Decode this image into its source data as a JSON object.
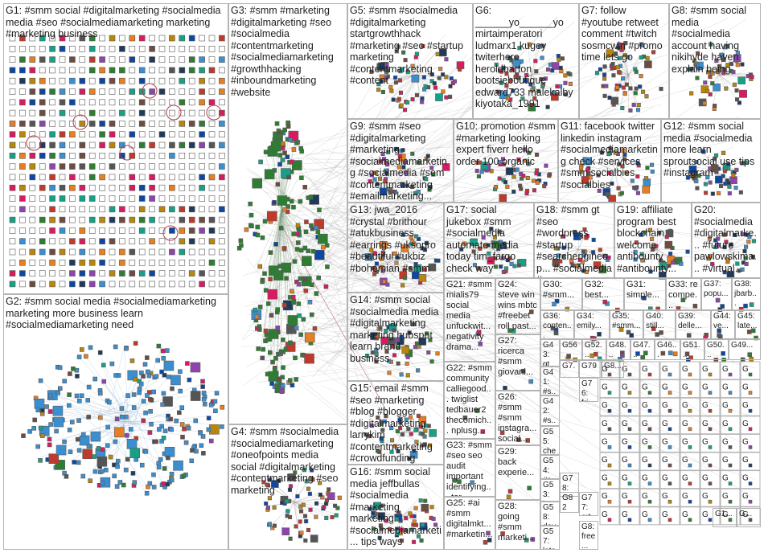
{
  "groups": [
    {
      "id": "G1",
      "label": "G1: #smm social #digitalmarketing #socialmedia media #seo #socialmediamarketing marketing #marketing business"
    },
    {
      "id": "G2",
      "label": "G2: #smm social media #socialmediamarketing marketing more business learn #socialmediamarketing need"
    },
    {
      "id": "G3",
      "label": "G3: #smm #marketing #digitalmarketing #seo #socialmedia #contentmarketing #socialmediamarketing #growthhacking #inboundmarketing #website"
    },
    {
      "id": "G4",
      "label": "G4: #smm #socialmedia #socialmediamarketing #oneofpoints media social #digitalmarketing #contentmarketing #seo marketing"
    },
    {
      "id": "G5",
      "label": "G5: #smm #socialmedia #digitalmarketing startgrowthhack #marketing #seo #startup marketing #contentmarketing #content"
    },
    {
      "id": "G6",
      "label": "G6: ______yo______yo mirtaimperatori ludmarx1 kugey twiterhero heroldbarton bootsieboutique edward733 malekalby kiyotaka_1991"
    },
    {
      "id": "G7",
      "label": "G7: follow #youtube retweet comment #twitch sosmcwin #promo time lets go"
    },
    {
      "id": "G8",
      "label": "G8: #smm social media #socialmedia account having nikihyde haven explain being"
    },
    {
      "id": "G9",
      "label": "G9: #smm #seo #digitalmarketing #marketing #socialmediamarketing #socialmedia #sem #contentmarketing #emailmarketing..."
    },
    {
      "id": "G10",
      "label": "G10: promotion #smm #marketing looking expert fiverr hello order 100 organic"
    },
    {
      "id": "G11",
      "label": "G11: facebook twitter linkedin instagram #socialmediamarketing check #services #smm socialbies #socialbies"
    },
    {
      "id": "G12",
      "label": "G12: #smm social media #socialmedia more learn sproutsocial use tips #instagram"
    },
    {
      "id": "G13",
      "label": "G13: jwa_2016 #crystal #brithour #atukbusiness #earrings #uksopro #beautiful #ukbiz #bohemian #smm"
    },
    {
      "id": "G14",
      "label": "G14: #smm social #socialmedia media #digitalmarketing marketing hubspot learn brand business"
    },
    {
      "id": "G15",
      "label": "G15: email #smm #seo #marketing #blog #blogger #digitalmarketing larrykim #contentmarketing #crowdfunding"
    },
    {
      "id": "G16",
      "label": "G16: #smm social media jeffbullas #socialmedia #marketing marketing #socialmediamarketi... tips ways"
    },
    {
      "id": "G17",
      "label": "G17: social jukebox #smm #socialmedia automate media today tim_fargo check way"
    },
    {
      "id": "G18",
      "label": "G18: #smm gt #seo #wordpress #startup #searchengineop... #socialmedia #seonews #sem..."
    },
    {
      "id": "G19",
      "label": "G19: affiliate program best blockchain welcome antibounty #antibounty..."
    },
    {
      "id": "G20",
      "label": "G20: #socialmedia #digitalmarke... #future pawlowskima... #virtual..."
    },
    {
      "id": "G21",
      "label": "G21: #smm mialis79 social media unfuckwit... negativity drama..."
    },
    {
      "id": "G22",
      "label": "G22: #smm community calliegood... twiglist tedbauer2 thecomich... nplusg..."
    },
    {
      "id": "G23",
      "label": "G23: #smm #seo seo audit important identifying... tor..."
    },
    {
      "id": "G24",
      "label": "G24: steve win wins mbtc #freebet roll past..."
    },
    {
      "id": "G25",
      "label": "G25: #ai #smm digitalmkt... #marketin..."
    },
    {
      "id": "G26",
      "label": "G26: #smm #smm instagra... social..."
    },
    {
      "id": "G27",
      "label": "G27: ricerca #smm giovani..."
    },
    {
      "id": "G28",
      "label": "G28: going #smm marketi..."
    },
    {
      "id": "G29",
      "label": "G29: back experie..."
    },
    {
      "id": "G30",
      "label": "G30: #smm..."
    },
    {
      "id": "G31",
      "label": "G31: simple..."
    },
    {
      "id": "G32",
      "label": "G32: best..."
    },
    {
      "id": "G33",
      "label": "G33: re compe..."
    },
    {
      "id": "G34",
      "label": "G34: emily..."
    },
    {
      "id": "G35",
      "label": "G35: #smm..."
    },
    {
      "id": "G36",
      "label": "G36: conten..."
    },
    {
      "id": "G37",
      "label": "G37: popu..."
    },
    {
      "id": "G38",
      "label": "G38: jbarb..."
    },
    {
      "id": "G39",
      "label": "G39: delle..."
    },
    {
      "id": "G40",
      "label": "G40: still..."
    },
    {
      "id": "G41",
      "label": "G41: #s..."
    },
    {
      "id": "G42",
      "label": "G42: #s..."
    },
    {
      "id": "G43",
      "label": "G43: gt..."
    },
    {
      "id": "G44",
      "label": "G44: ve..."
    },
    {
      "id": "G45",
      "label": "G45: late..."
    },
    {
      "id": "G46",
      "label": "G46..."
    },
    {
      "id": "G47",
      "label": "G47..."
    },
    {
      "id": "G48",
      "label": "G48..."
    },
    {
      "id": "G49",
      "label": "G49..."
    },
    {
      "id": "G50",
      "label": "G50..."
    },
    {
      "id": "G51",
      "label": "G51..."
    },
    {
      "id": "G52",
      "label": "G52..."
    },
    {
      "id": "G53",
      "label": "G53: late..."
    },
    {
      "id": "G54",
      "label": "G54: #s..."
    },
    {
      "id": "G55",
      "label": "G55: che..."
    },
    {
      "id": "G56",
      "label": "G56"
    },
    {
      "id": "G57",
      "label": "G57: late..."
    },
    {
      "id": "G58",
      "label": "G58: dev..."
    },
    {
      "id": "G76",
      "label": "G76: fri..."
    },
    {
      "id": "G77",
      "label": "G77: art..."
    },
    {
      "id": "G78",
      "label": "G78: #s..."
    },
    {
      "id": "G79",
      "label": "G79"
    },
    {
      "id": "G82",
      "label": "G82"
    },
    {
      "id": "G7b",
      "label": "G7..."
    },
    {
      "id": "G8b",
      "label": "G8..."
    },
    {
      "id": "G8c",
      "label": "G8: free..."
    },
    {
      "id": "G1b",
      "label": "G1..."
    },
    {
      "id": "Gx",
      "label": "G..."
    }
  ],
  "colors": {
    "box_border": "#b4b4b4",
    "edge": "#8c8c8c",
    "edge_red": "#a03c3c",
    "g1_node": "#1f3a5a",
    "g2_node": "#3a8fd0",
    "g3_node": "#2e7d32",
    "accent_red": "#c0392b"
  }
}
